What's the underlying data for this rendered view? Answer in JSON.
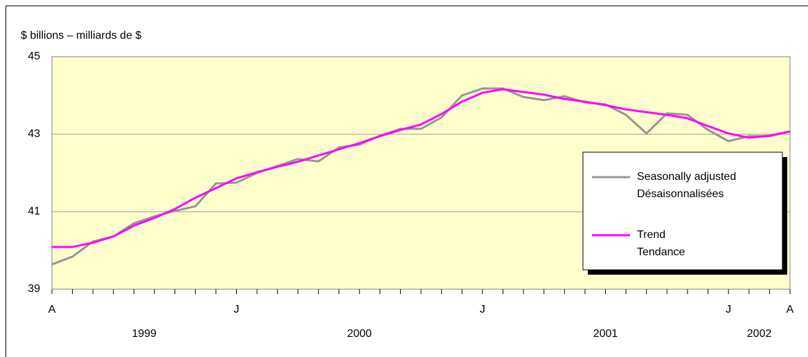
{
  "chart_data": {
    "type": "line",
    "ylabel": "$ billions – milliards de $",
    "categories": [
      "A",
      null,
      null,
      null,
      null,
      null,
      null,
      null,
      null,
      "J",
      null,
      null,
      null,
      null,
      null,
      null,
      null,
      null,
      null,
      null,
      null,
      "J",
      null,
      null,
      null,
      null,
      null,
      null,
      null,
      null,
      null,
      null,
      null,
      "J",
      null,
      null,
      "A"
    ],
    "years": [
      "1999",
      "2000",
      "2001",
      "2002"
    ],
    "ylim": [
      39,
      45
    ],
    "yticks": [
      39,
      41,
      43,
      45
    ],
    "grid": true,
    "legend": "right",
    "series": [
      {
        "name": [
          "Seasonally adjusted",
          "Désaisonnalisées"
        ],
        "color": "#969696",
        "values": [
          39.64,
          39.84,
          40.23,
          40.36,
          40.7,
          40.88,
          41.02,
          41.14,
          41.73,
          41.75,
          42.0,
          42.18,
          42.36,
          42.3,
          42.66,
          42.73,
          42.96,
          43.14,
          43.14,
          43.43,
          44.0,
          44.18,
          44.18,
          43.96,
          43.88,
          43.98,
          43.82,
          43.77,
          43.5,
          43.02,
          43.54,
          43.5,
          43.11,
          42.82,
          42.95,
          42.95,
          43.07
        ]
      },
      {
        "name": [
          "Trend",
          "Tendance"
        ],
        "color": "#ff00ff",
        "values": [
          40.09,
          40.09,
          40.2,
          40.36,
          40.64,
          40.84,
          41.07,
          41.36,
          41.61,
          41.86,
          42.02,
          42.16,
          42.29,
          42.45,
          42.61,
          42.77,
          42.95,
          43.11,
          43.25,
          43.52,
          43.84,
          44.07,
          44.16,
          44.09,
          44.02,
          43.91,
          43.84,
          43.75,
          43.64,
          43.57,
          43.5,
          43.41,
          43.21,
          43.02,
          42.91,
          42.96,
          43.07
        ]
      }
    ]
  }
}
